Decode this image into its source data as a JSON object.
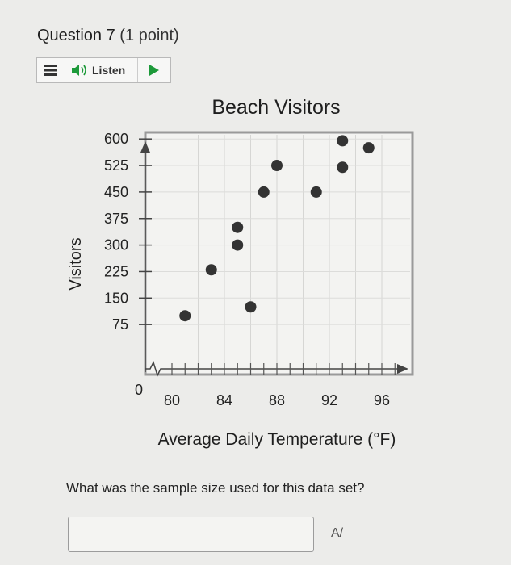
{
  "question": {
    "number_label": "Question 7",
    "points_label": "(1 point)",
    "prompt": "What was the sample size used for this data set?",
    "answer_value": "",
    "answer_placeholder": ""
  },
  "toolbar": {
    "menu_icon": "menu-icon",
    "listen_label": "Listen",
    "speaker_icon": "speaker-icon",
    "play_icon": "play-icon",
    "accent": "#1d9a3a"
  },
  "spellcheck": {
    "glyph": "A/",
    "icon": "spellcheck-icon"
  },
  "chart_data": {
    "type": "scatter",
    "title": "Beach Visitors",
    "xlabel": "Average Daily Temperature (°F)",
    "ylabel": "Visitors",
    "xlim": [
      77,
      99
    ],
    "ylim": [
      0,
      650
    ],
    "x_ticks": [
      80,
      84,
      88,
      92,
      96
    ],
    "y_ticks": [
      75,
      150,
      225,
      300,
      375,
      450,
      525,
      600
    ],
    "origin_label": "0",
    "axis_break": true,
    "grid": true,
    "point_color": "#333333",
    "points": [
      {
        "x": 81,
        "y": 100
      },
      {
        "x": 83,
        "y": 230
      },
      {
        "x": 85,
        "y": 300
      },
      {
        "x": 85,
        "y": 350
      },
      {
        "x": 86,
        "y": 125
      },
      {
        "x": 87,
        "y": 450
      },
      {
        "x": 88,
        "y": 525
      },
      {
        "x": 91,
        "y": 450
      },
      {
        "x": 93,
        "y": 520
      },
      {
        "x": 93,
        "y": 595
      },
      {
        "x": 95,
        "y": 575
      }
    ]
  }
}
